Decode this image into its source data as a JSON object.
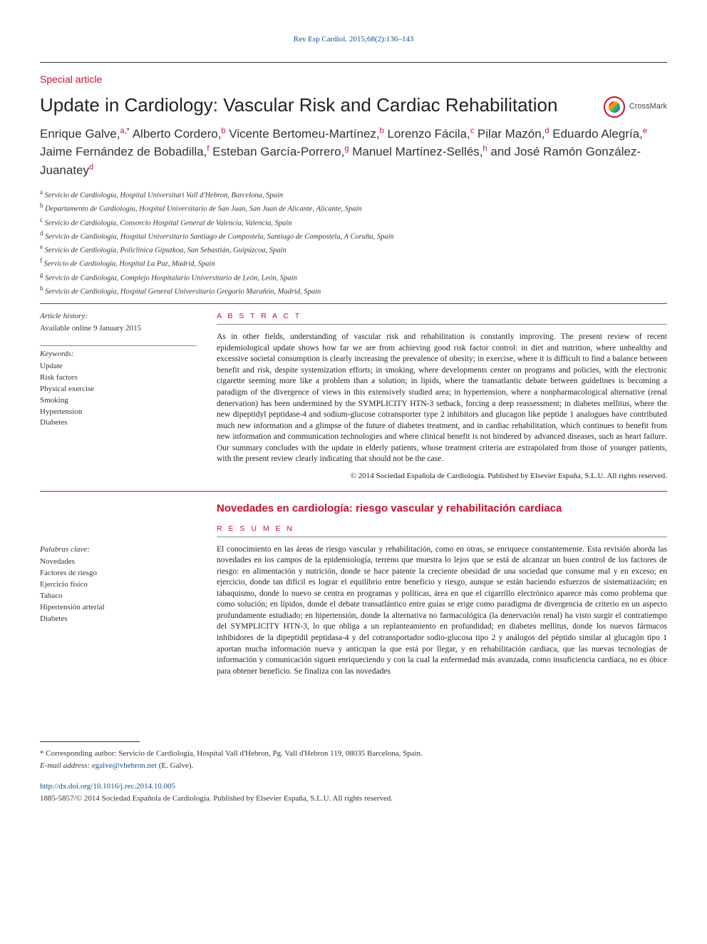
{
  "colors": {
    "brand_red": "#c8102e",
    "link_blue": "#1a4b8c",
    "text": "#222222",
    "muted": "#333333",
    "rule_light": "#999999",
    "rule_dark": "#333333",
    "background": "#ffffff"
  },
  "typography": {
    "title_fontsize": 26,
    "authors_fontsize": 17,
    "body_fontsize": 13,
    "abstract_fontsize": 11.5,
    "small_fontsize": 11,
    "font_family_body": "Georgia, 'Times New Roman', serif",
    "font_family_headings": "Arial, sans-serif"
  },
  "header": {
    "citation": "Rev Esp Cardiol. 2015;68(2):136–143"
  },
  "article": {
    "section_label": "Special article",
    "title": "Update in Cardiology: Vascular Risk and Cardiac Rehabilitation",
    "crossmark_label": "CrossMark"
  },
  "authors_html": "Enrique Galve,<sup>a,</sup><sup class='ast'>*</sup> Alberto Cordero,<sup>b</sup> Vicente Bertomeu-Martínez,<sup>b</sup> Lorenzo Fácila,<sup>c</sup> Pilar Mazón,<sup>d</sup> Eduardo Alegría,<sup>e</sup> Jaime Fernández de Bobadilla,<sup>f</sup> Esteban García-Porrero,<sup>g</sup> Manuel Martínez-Sellés,<sup>h</sup> and José Ramón González-Juanatey<sup>d</sup>",
  "affiliations": [
    {
      "key": "a",
      "text": "Servicio de Cardiología, Hospital Universitari Vall d'Hebron, Barcelona, Spain"
    },
    {
      "key": "b",
      "text": "Departamento de Cardiología, Hospital Universitario de San Juan, San Juan de Alicante, Alicante, Spain"
    },
    {
      "key": "c",
      "text": "Servicio de Cardiología, Consorcio Hospital General de Valencia, Valencia, Spain"
    },
    {
      "key": "d",
      "text": "Servicio de Cardiología, Hospital Universitario Santiago de Compostela, Santiago de Compostela, A Coruña, Spain"
    },
    {
      "key": "e",
      "text": "Servicio de Cardiología, Policlínica Gipuzkoa, San Sebastián, Guipúzcoa, Spain"
    },
    {
      "key": "f",
      "text": "Servicio de Cardiología, Hospital La Paz, Madrid, Spain"
    },
    {
      "key": "g",
      "text": "Servicio de Cardiología, Complejo Hospitalario Universitario de León, León, Spain"
    },
    {
      "key": "h",
      "text": "Servicio de Cardiología, Hospital General Universitario Gregorio Marañón, Madrid, Spain"
    }
  ],
  "history": {
    "label": "Article history:",
    "online": "Available online 9 January 2015"
  },
  "keywords_en": {
    "label": "Keywords:",
    "items": [
      "Update",
      "Risk factors",
      "Physical exercise",
      "Smoking",
      "Hypertension",
      "Diabetes"
    ]
  },
  "abstract_en": {
    "heading": "A B S T R A C T",
    "text": "As in other fields, understanding of vascular risk and rehabilitation is constantly improving. The present review of recent epidemiological update shows how far we are from achieving good risk factor control: in diet and nutrition, where unhealthy and excessive societal consumption is clearly increasing the prevalence of obesity; in exercise, where it is difficult to find a balance between benefit and risk, despite systemization efforts; in smoking, where developments center on programs and policies, with the electronic cigarette seeming more like a problem than a solution; in lipids, where the transatlantic debate between guidelines is becoming a paradigm of the divergence of views in this extensively studied area; in hypertension, where a nonpharmacological alternative (renal denervation) has been undermined by the SYMPLICITY HTN-3 setback, forcing a deep reassessment; in diabetes mellitus, where the new dipeptidyl peptidase-4 and sodium-glucose cotransporter type 2 inhibitors and glucagon like peptide 1 analogues have contributed much new information and a glimpse of the future of diabetes treatment, and in cardiac rehabilitation, which continues to benefit from new information and communication technologies and where clinical benefit is not hindered by advanced diseases, such as heart failure. Our summary concludes with the update in elderly patients, whose treatment criteria are extrapolated from those of younger patients, with the present review clearly indicating that should not be the case.",
    "copyright": "© 2014 Sociedad Española de Cardiología. Published by Elsevier España, S.L.U. All rights reserved."
  },
  "title_es": "Novedades en cardiología: riesgo vascular y rehabilitación cardiaca",
  "keywords_es": {
    "label": "Palabras clave:",
    "items": [
      "Novedades",
      "Factores de riesgo",
      "Ejercicio físico",
      "Tabaco",
      "Hipertensión arterial",
      "Diabetes"
    ]
  },
  "abstract_es": {
    "heading": "R E S U M E N",
    "text": "El conocimiento en las áreas de riesgo vascular y rehabilitación, como en otras, se enriquece constantemente. Esta revisión aborda las novedades en los campos de la epidemiología, terreno que muestra lo lejos que se está de alcanzar un buen control de los factores de riesgo: en alimentación y nutrición, donde se hace patente la creciente obesidad de una sociedad que consume mal y en exceso; en ejercicio, donde tan difícil es lograr el equilibrio entre beneficio y riesgo, aunque se están haciendo esfuerzos de sistematización; en tabaquismo, donde lo nuevo se centra en programas y políticas, área en que el cigarrillo electrónico aparece más como problema que como solución; en lípidos, donde el debate transatlántico entre guías se erige como paradigma de divergencia de criterio en un aspecto profundamente estudiado; en hipertensión, donde la alternativa no farmacológica (la denervación renal) ha visto surgir el contratiempo del SYMPLICITY HTN-3, lo que obliga a un replanteamiento en profundidad; en diabetes mellitus, donde los nuevos fármacos inhibidores de la dipeptidil peptidasa-4 y del cotransportador sodio-glucosa tipo 2 y análogos del péptido similar al glucagón tipo 1 aportan mucha información nueva y anticipan la que está por llegar, y en rehabilitación cardiaca, que las nuevas tecnologías de información y comunicación siguen enriqueciendo y con la cual la enfermedad más avanzada, como insuficiencia cardiaca, no es óbice para obtener beneficio. Se finaliza con las novedades"
  },
  "footnote": {
    "corresponding": "* Corresponding author: Servicio de Cardiología, Hospital Vall d'Hebron, Pg. Vall d'Hebron 119, 08035 Barcelona, Spain.",
    "email_label": "E-mail address:",
    "email": "egalve@vhebron.net",
    "email_paren": "(E. Galve)."
  },
  "doi": "http://dx.doi.org/10.1016/j.rec.2014.10.005",
  "issn_line": "1885-5857/© 2014 Sociedad Española de Cardiología. Published by Elsevier España, S.L.U. All rights reserved."
}
